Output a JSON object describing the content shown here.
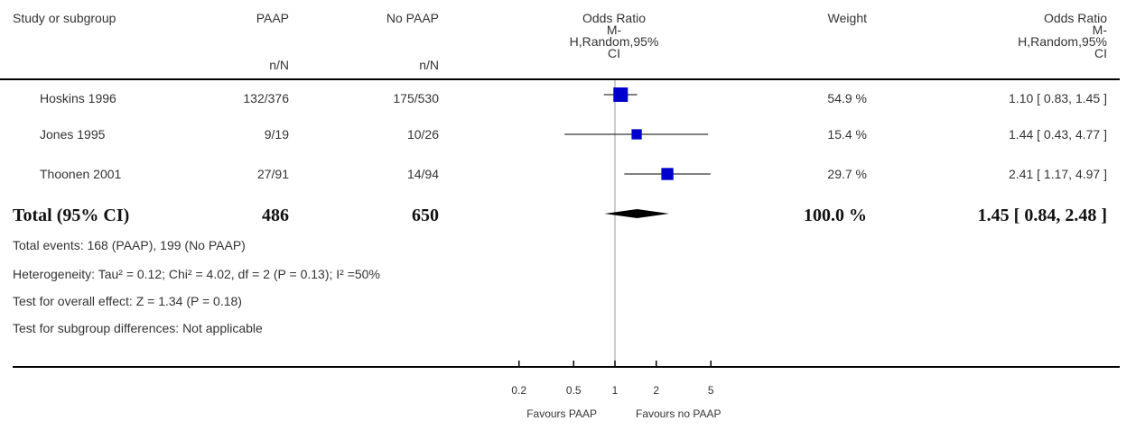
{
  "header": {
    "study_label": "Study or subgroup",
    "group1_label": "PAAP",
    "group1_sub": "n/N",
    "group2_label": "No PAAP",
    "group2_sub": "n/N",
    "or_label_1": "Odds Ratio",
    "or_label_2": "M-",
    "or_label_3": "H,Random,95%",
    "or_label_4": "CI",
    "weight_label": "Weight",
    "or2_label_1": "Odds Ratio",
    "or2_label_2": "M-",
    "or2_label_3": "H,Random,95%",
    "or2_label_4": "CI"
  },
  "studies": [
    {
      "name": "Hoskins 1996",
      "paap": "132/376",
      "no_paap": "175/530",
      "weight": "54.9 %",
      "or_text": "1.10 [ 0.83, 1.45 ]"
    },
    {
      "name": "Jones 1995",
      "paap": "9/19",
      "no_paap": "10/26",
      "weight": "15.4 %",
      "or_text": "1.44 [ 0.43, 4.77 ]"
    },
    {
      "name": "Thoonen 2001",
      "paap": "27/91",
      "no_paap": "14/94",
      "weight": "29.7 %",
      "or_text": "2.41 [ 1.17, 4.97 ]"
    }
  ],
  "total": {
    "label": "Total (95% CI)",
    "paap": "486",
    "no_paap": "650",
    "weight": "100.0 %",
    "or_text": "1.45 [ 0.84, 2.48 ]"
  },
  "footnotes": {
    "events": "Total events: 168 (PAAP), 199 (No PAAP)",
    "heterogeneity": "Heterogeneity: Tau² = 0.12; Chi² = 4.02, df = 2 (P = 0.13); I² =50%",
    "overall_effect": "Test for overall effect: Z = 1.34 (P = 0.18)",
    "subgroup": "Test for subgroup differences: Not applicable"
  },
  "axis": {
    "tick_labels": [
      "0.2",
      "0.5",
      "1",
      "2",
      "5"
    ],
    "favours_left": "Favours PAAP",
    "favours_right": "Favours no PAAP"
  },
  "chart_data": {
    "type": "forest",
    "scale": "log",
    "xlim": [
      0.2,
      5
    ],
    "ticks": [
      0.2,
      0.5,
      1,
      2,
      5
    ],
    "reference_line": 1,
    "studies": [
      {
        "name": "Hoskins 1996",
        "or": 1.1,
        "ci": [
          0.83,
          1.45
        ],
        "weight": 54.9
      },
      {
        "name": "Jones 1995",
        "or": 1.44,
        "ci": [
          0.43,
          4.77
        ],
        "weight": 15.4
      },
      {
        "name": "Thoonen 2001",
        "or": 2.41,
        "ci": [
          1.17,
          4.97
        ],
        "weight": 29.7
      }
    ],
    "pooled": {
      "or": 1.45,
      "ci": [
        0.84,
        2.48
      ],
      "weight": 100.0
    },
    "marker_color": "#0000cc"
  }
}
